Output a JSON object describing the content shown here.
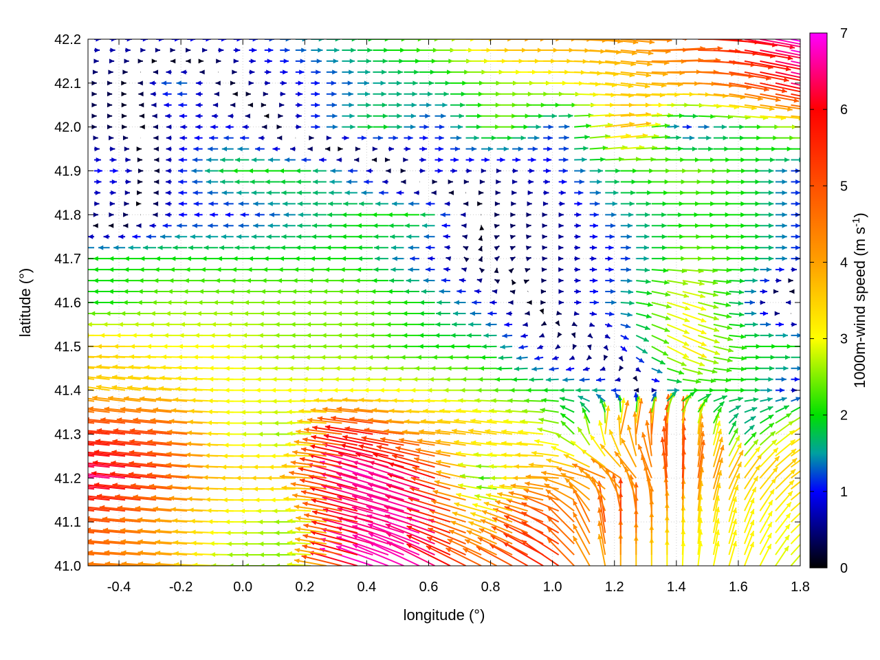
{
  "chart_data": {
    "type": "vector-field",
    "xlabel": "longitude (°)",
    "ylabel": "latitude (°)",
    "colorbar_label": "1000m-wind speed (m s",
    "colorbar_label_sup": "-1",
    "colorbar_label_end": ")",
    "xlim": [
      -0.5,
      1.8
    ],
    "ylim": [
      41.0,
      42.2
    ],
    "clim": [
      0,
      7
    ],
    "xticks": [
      "-0.4",
      "-0.2",
      "0.0",
      "0.2",
      "0.4",
      "0.6",
      "0.8",
      "1.0",
      "1.2",
      "1.4",
      "1.6",
      "1.8"
    ],
    "yticks": [
      "41.0",
      "41.1",
      "41.2",
      "41.3",
      "41.4",
      "41.5",
      "41.6",
      "41.7",
      "41.8",
      "41.9",
      "42.0",
      "42.1",
      "42.2"
    ],
    "cticks": [
      "0",
      "1",
      "2",
      "3",
      "4",
      "5",
      "6",
      "7"
    ],
    "grid": true,
    "colormap": [
      "#000000",
      "#0000ff",
      "#00a0a0",
      "#00e000",
      "#ffff00",
      "#ffa000",
      "#ff5000",
      "#ff0000",
      "#ff00ff"
    ],
    "colormap_stops": [
      0,
      1,
      1.5,
      2,
      3,
      4,
      5,
      6,
      7
    ],
    "grid_lon": [
      -0.4,
      -0.2,
      0.0,
      0.2,
      0.4,
      0.6,
      0.8,
      1.0,
      1.2,
      1.4,
      1.6,
      1.8
    ],
    "grid_lat": [
      42.2,
      42.1,
      42.0,
      41.9,
      41.8,
      41.7,
      41.6,
      41.5,
      41.4,
      41.3,
      41.2,
      41.1,
      41.0
    ],
    "uv": [
      [
        [
          0.8,
          0
        ],
        [
          1,
          0
        ],
        [
          1,
          0
        ],
        [
          1.5,
          0
        ],
        [
          2,
          0
        ],
        [
          2.5,
          0
        ],
        [
          4,
          0
        ],
        [
          4,
          0
        ],
        [
          4,
          -0.5
        ],
        [
          5,
          0.5
        ],
        [
          6,
          -1
        ],
        [
          7,
          -1.5
        ]
      ],
      [
        [
          0.3,
          0
        ],
        [
          -1.5,
          0
        ],
        [
          0.5,
          0
        ],
        [
          1,
          0
        ],
        [
          1.5,
          0
        ],
        [
          1.8,
          0
        ],
        [
          2.5,
          0
        ],
        [
          3,
          0
        ],
        [
          3.5,
          -0.5
        ],
        [
          4,
          0
        ],
        [
          5,
          -1
        ],
        [
          6.5,
          -1.5
        ]
      ],
      [
        [
          0.3,
          0
        ],
        [
          -0.8,
          0
        ],
        [
          -1,
          0
        ],
        [
          1,
          0
        ],
        [
          2,
          0
        ],
        [
          1,
          0
        ],
        [
          2.5,
          0
        ],
        [
          1,
          0
        ],
        [
          4,
          0.5
        ],
        [
          1,
          0
        ],
        [
          2,
          0
        ],
        [
          3,
          0
        ]
      ],
      [
        [
          1,
          0
        ],
        [
          -1,
          0
        ],
        [
          -2,
          0
        ],
        [
          -2,
          0
        ],
        [
          -1,
          0
        ],
        [
          1,
          0
        ],
        [
          0.5,
          0
        ],
        [
          1,
          0
        ],
        [
          2,
          0
        ],
        [
          2.5,
          0
        ],
        [
          2,
          0
        ],
        [
          1,
          0
        ]
      ],
      [
        [
          0.5,
          0
        ],
        [
          -1,
          0
        ],
        [
          -1,
          0
        ],
        [
          -1.5,
          0
        ],
        [
          -2,
          0
        ],
        [
          -2,
          0
        ],
        [
          0.3,
          0
        ],
        [
          0.5,
          0
        ],
        [
          1.5,
          0
        ],
        [
          2,
          0
        ],
        [
          2,
          0
        ],
        [
          1,
          0
        ]
      ],
      [
        [
          -2,
          0
        ],
        [
          -2,
          0
        ],
        [
          -2,
          0
        ],
        [
          -2,
          0
        ],
        [
          -2,
          0
        ],
        [
          -1,
          0
        ],
        [
          0.3,
          0.3
        ],
        [
          0.5,
          0
        ],
        [
          1,
          0
        ],
        [
          2.5,
          0
        ],
        [
          2,
          0
        ],
        [
          1,
          0
        ]
      ],
      [
        [
          -2,
          0
        ],
        [
          -2.5,
          0
        ],
        [
          -2.5,
          0
        ],
        [
          -2.5,
          0
        ],
        [
          -2.5,
          0
        ],
        [
          -2,
          0
        ],
        [
          -1,
          0
        ],
        [
          0.5,
          0
        ],
        [
          1.5,
          0
        ],
        [
          3,
          -1
        ],
        [
          1.5,
          0
        ],
        [
          -1,
          0
        ]
      ],
      [
        [
          -3.5,
          0
        ],
        [
          -3,
          0
        ],
        [
          -3,
          0
        ],
        [
          -2.5,
          0
        ],
        [
          -2.5,
          0
        ],
        [
          -2,
          0
        ],
        [
          -2,
          0
        ],
        [
          -0.5,
          -0.3
        ],
        [
          0.5,
          -0.5
        ],
        [
          3,
          -1.5
        ],
        [
          2,
          0
        ],
        [
          2,
          0
        ]
      ],
      [
        [
          -3.5,
          0.5
        ],
        [
          -3.5,
          0.3
        ],
        [
          -3,
          0
        ],
        [
          -3,
          0
        ],
        [
          -3,
          0
        ],
        [
          -3,
          0
        ],
        [
          -2.5,
          0
        ],
        [
          -2,
          0
        ],
        [
          -1.5,
          0
        ],
        [
          2,
          0
        ],
        [
          2,
          0
        ],
        [
          0.5,
          0
        ]
      ],
      [
        [
          -5.5,
          0.5
        ],
        [
          -5,
          0.5
        ],
        [
          -3,
          0
        ],
        [
          -2.5,
          0
        ],
        [
          -6,
          1
        ],
        [
          -4,
          0.3
        ],
        [
          -3.5,
          0.5
        ],
        [
          -3,
          0.3
        ],
        [
          1,
          4
        ],
        [
          0,
          5
        ],
        [
          1,
          1
        ],
        [
          3,
          2
        ]
      ],
      [
        [
          -6.5,
          0.7
        ],
        [
          -5,
          0.5
        ],
        [
          -3.5,
          0
        ],
        [
          -3.5,
          0
        ],
        [
          -6.5,
          2
        ],
        [
          -6,
          2
        ],
        [
          -2,
          0
        ],
        [
          -4,
          0
        ],
        [
          -4,
          2
        ],
        [
          0,
          5.5
        ],
        [
          2,
          3
        ],
        [
          3,
          2
        ]
      ],
      [
        [
          -5,
          0.5
        ],
        [
          -4,
          0.3
        ],
        [
          -3,
          0
        ],
        [
          -2.5,
          0
        ],
        [
          -6,
          1.5
        ],
        [
          -6.5,
          2
        ],
        [
          -3,
          1
        ],
        [
          -5,
          2
        ],
        [
          0,
          5.5
        ],
        [
          0,
          3.5
        ],
        [
          1,
          3
        ],
        [
          2.5,
          2
        ]
      ],
      [
        [
          -4.5,
          0.3
        ],
        [
          -4,
          0.3
        ],
        [
          -2.5,
          0
        ],
        [
          -2.5,
          0
        ],
        [
          -6.5,
          2
        ],
        [
          -6,
          3
        ],
        [
          -4,
          2
        ],
        [
          -5,
          3
        ],
        [
          0,
          4
        ],
        [
          0,
          3
        ],
        [
          1,
          3
        ],
        [
          2,
          2
        ]
      ]
    ]
  }
}
